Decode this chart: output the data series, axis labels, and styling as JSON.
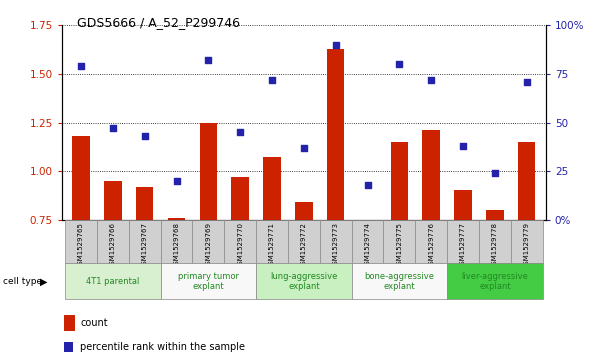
{
  "title": "GDS5666 / A_52_P299746",
  "samples": [
    "GSM1529765",
    "GSM1529766",
    "GSM1529767",
    "GSM1529768",
    "GSM1529769",
    "GSM1529770",
    "GSM1529771",
    "GSM1529772",
    "GSM1529773",
    "GSM1529774",
    "GSM1529775",
    "GSM1529776",
    "GSM1529777",
    "GSM1529778",
    "GSM1529779"
  ],
  "bar_values": [
    1.18,
    0.95,
    0.92,
    0.76,
    1.25,
    0.97,
    1.07,
    0.84,
    1.63,
    0.71,
    1.15,
    1.21,
    0.9,
    0.8,
    1.15
  ],
  "dot_values": [
    79,
    47,
    43,
    20,
    82,
    45,
    72,
    37,
    90,
    18,
    80,
    72,
    38,
    24,
    71
  ],
  "ylim_left": [
    0.75,
    1.75
  ],
  "ylim_right": [
    0,
    100
  ],
  "yticks_left": [
    0.75,
    1.0,
    1.25,
    1.5,
    1.75
  ],
  "yticks_right": [
    0,
    25,
    50,
    75,
    100
  ],
  "ytick_labels_right": [
    "0%",
    "25",
    "50",
    "75",
    "100%"
  ],
  "bar_color": "#cc2200",
  "dot_color": "#2222aa",
  "cell_type_groups": [
    {
      "label": "4T1 parental",
      "start": 0,
      "end": 2,
      "color": "#d8f0d0",
      "text_color": "#228822"
    },
    {
      "label": "primary tumor\nexplant",
      "start": 3,
      "end": 5,
      "color": "#f8f8f8",
      "text_color": "#228822"
    },
    {
      "label": "lung-aggressive\nexplant",
      "start": 6,
      "end": 8,
      "color": "#c8f0c0",
      "text_color": "#228822"
    },
    {
      "label": "bone-aggressive\nexplant",
      "start": 9,
      "end": 11,
      "color": "#f8f8f8",
      "text_color": "#228822"
    },
    {
      "label": "liver-aggressive\nexplant",
      "start": 12,
      "end": 14,
      "color": "#44cc44",
      "text_color": "#228822"
    }
  ],
  "sample_bg_color": "#d0d0d0",
  "legend_count_color": "#cc2200",
  "legend_dot_color": "#2222aa"
}
